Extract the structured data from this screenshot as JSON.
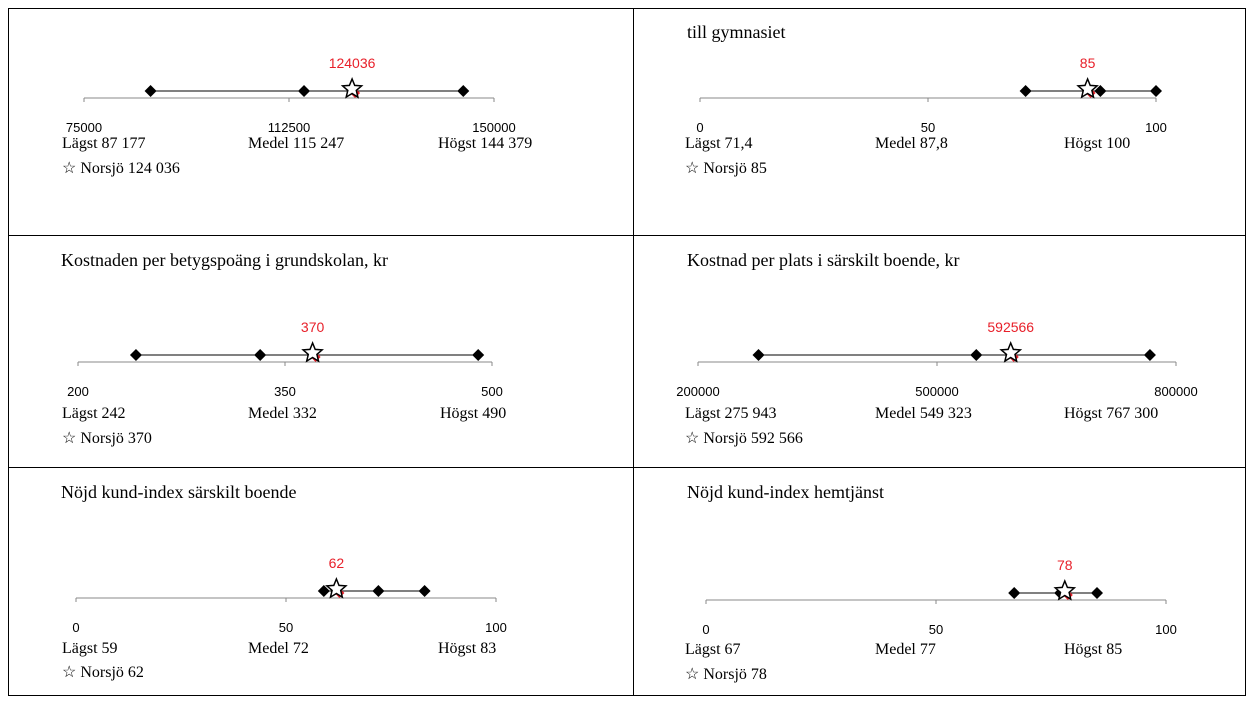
{
  "chart_data": [
    {
      "type": "range-dot",
      "title": "",
      "axis": {
        "min": 75000,
        "max": 150000,
        "ticks": [
          "75000",
          "112500",
          "150000"
        ]
      },
      "lowest": 87177,
      "mean": 115247,
      "highest": 144379,
      "highlight": 124036,
      "highlight_label": "124036",
      "text": {
        "lowest": "Lägst 87 177",
        "mean": "Medel 115 247",
        "highest": "Högst 144 379",
        "highlight": "☆ Norsjö 124 036"
      }
    },
    {
      "type": "range-dot",
      "title": "till gymnasiet",
      "axis": {
        "min": 0,
        "max": 100,
        "ticks": [
          "0",
          "50",
          "100"
        ]
      },
      "lowest": 71.4,
      "mean": 87.8,
      "highest": 100,
      "highlight": 85,
      "highlight_label": "85",
      "text": {
        "lowest": "Lägst 71,4",
        "mean": "Medel 87,8",
        "highest": "Högst 100",
        "highlight": "☆ Norsjö 85"
      }
    },
    {
      "type": "range-dot",
      "title": "Kostnaden per betygspoäng i grundskolan, kr",
      "axis": {
        "min": 200,
        "max": 500,
        "ticks": [
          "200",
          "350",
          "500"
        ]
      },
      "lowest": 242,
      "mean": 332,
      "highest": 490,
      "highlight": 370,
      "highlight_label": "370",
      "text": {
        "lowest": "Lägst 242",
        "mean": "Medel 332",
        "highest": "Högst 490",
        "highlight": "☆ Norsjö 370"
      }
    },
    {
      "type": "range-dot",
      "title": "Kostnad per plats i särskilt boende, kr",
      "axis": {
        "min": 200000,
        "max": 800000,
        "ticks": [
          "200000",
          "500000",
          "800000"
        ]
      },
      "lowest": 275943,
      "mean": 549323,
      "highest": 767300,
      "highlight": 592566,
      "highlight_label": "592566",
      "text": {
        "lowest": "Lägst 275 943",
        "mean": "Medel 549 323",
        "highest": "Högst 767 300",
        "highlight": "☆ Norsjö 592 566"
      }
    },
    {
      "type": "range-dot",
      "title": "Nöjd kund-index särskilt boende",
      "axis": {
        "min": 0,
        "max": 100,
        "ticks": [
          "0",
          "50",
          "100"
        ]
      },
      "lowest": 59,
      "mean": 72,
      "highest": 83,
      "highlight": 62,
      "highlight_label": "62",
      "text": {
        "lowest": "Lägst 59",
        "mean": "Medel 72",
        "highest": "Högst 83",
        "highlight": "☆ Norsjö 62"
      }
    },
    {
      "type": "range-dot",
      "title": "Nöjd kund-index hemtjänst",
      "axis": {
        "min": 0,
        "max": 100,
        "ticks": [
          "0",
          "50",
          "100"
        ]
      },
      "lowest": 67,
      "mean": 77,
      "highest": 85,
      "highlight": 78,
      "highlight_label": "78",
      "text": {
        "lowest": "Lägst 67",
        "mean": "Medel 77",
        "highest": "Högst 85",
        "highlight": "☆ Norsjö 78"
      }
    }
  ],
  "colors": {
    "highlight": "#e8202a",
    "marker": "#000000",
    "axis": "#888888",
    "border": "#000000"
  }
}
